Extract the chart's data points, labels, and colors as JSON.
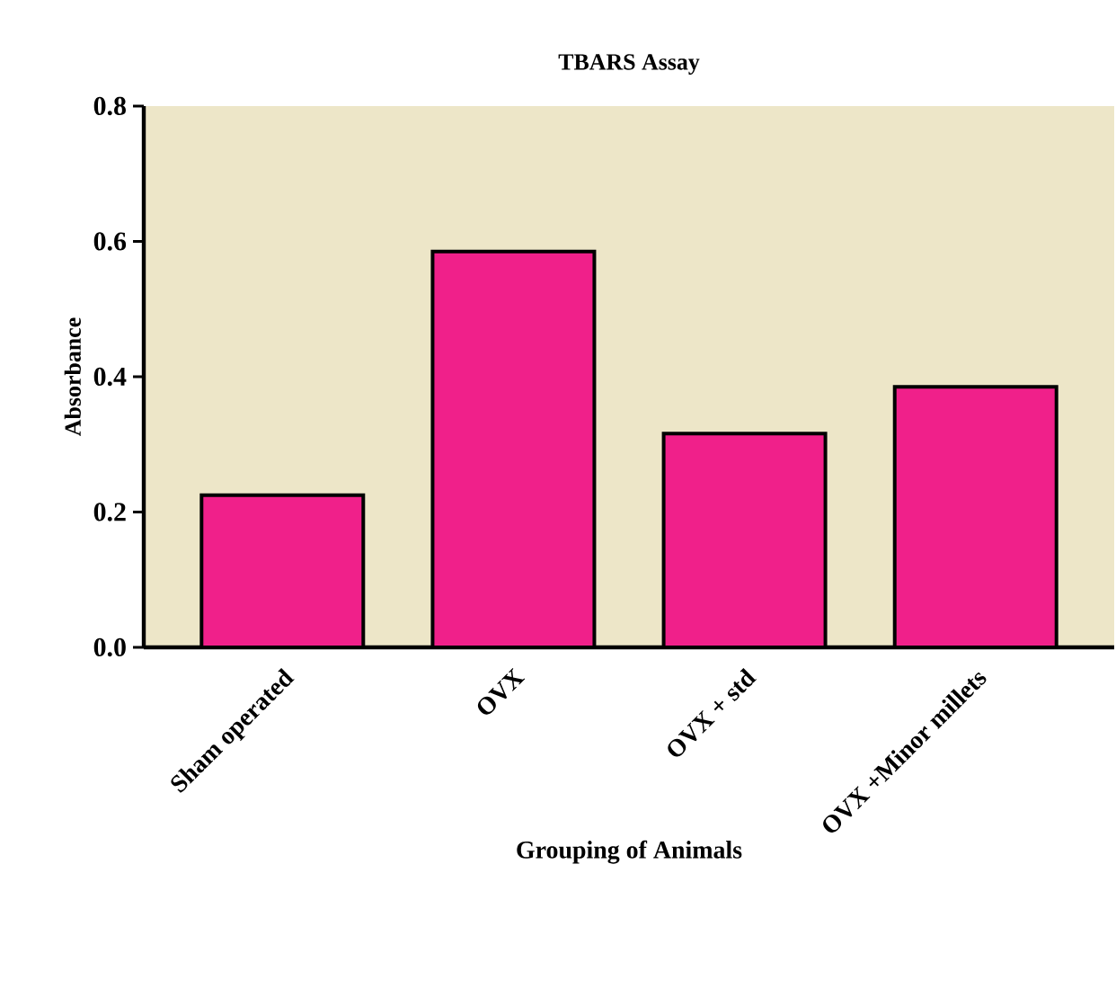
{
  "chart_data": {
    "type": "bar",
    "title": "TBARS Assay",
    "xlabel": "Grouping of Animals",
    "ylabel": "Absorbance",
    "categories": [
      "Sham operated",
      "OVX",
      "OVX + std",
      "OVX +Minor millets"
    ],
    "values": [
      0.225,
      0.585,
      0.316,
      0.385
    ],
    "color": "#f0208a",
    "ylim": [
      0,
      0.8
    ],
    "yticks": [
      {
        "value": 0,
        "label": "0.0"
      },
      {
        "value": 0.2,
        "label": "0.2"
      },
      {
        "value": 0.4,
        "label": "0.4"
      },
      {
        "value": 0.6,
        "label": "0.6"
      },
      {
        "value": 0.8,
        "label": "0.8"
      }
    ],
    "grid": false
  }
}
